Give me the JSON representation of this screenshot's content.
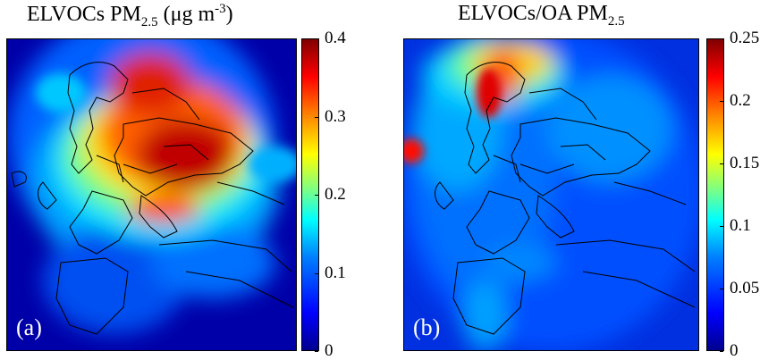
{
  "panels": [
    {
      "id": "a",
      "title_main": "ELVOCs PM",
      "title_sub": "2.5",
      "title_unit_pre": "(μg m",
      "title_unit_sup": "-3",
      "title_unit_post": ")",
      "label": "(a)",
      "colorbar": {
        "min": 0,
        "max": 0.4,
        "ticks": [
          "0",
          "0.1",
          "0.2",
          "0.3",
          "0.4"
        ]
      }
    },
    {
      "id": "b",
      "title_main": "ELVOCs/OA PM",
      "title_sub": "2.5",
      "label": "(b)",
      "colorbar": {
        "min": 0,
        "max": 0.25,
        "ticks": [
          "0",
          "0.05",
          "0.1",
          "0.15",
          "0.2",
          "0.25"
        ]
      }
    }
  ],
  "colormap": "jet"
}
